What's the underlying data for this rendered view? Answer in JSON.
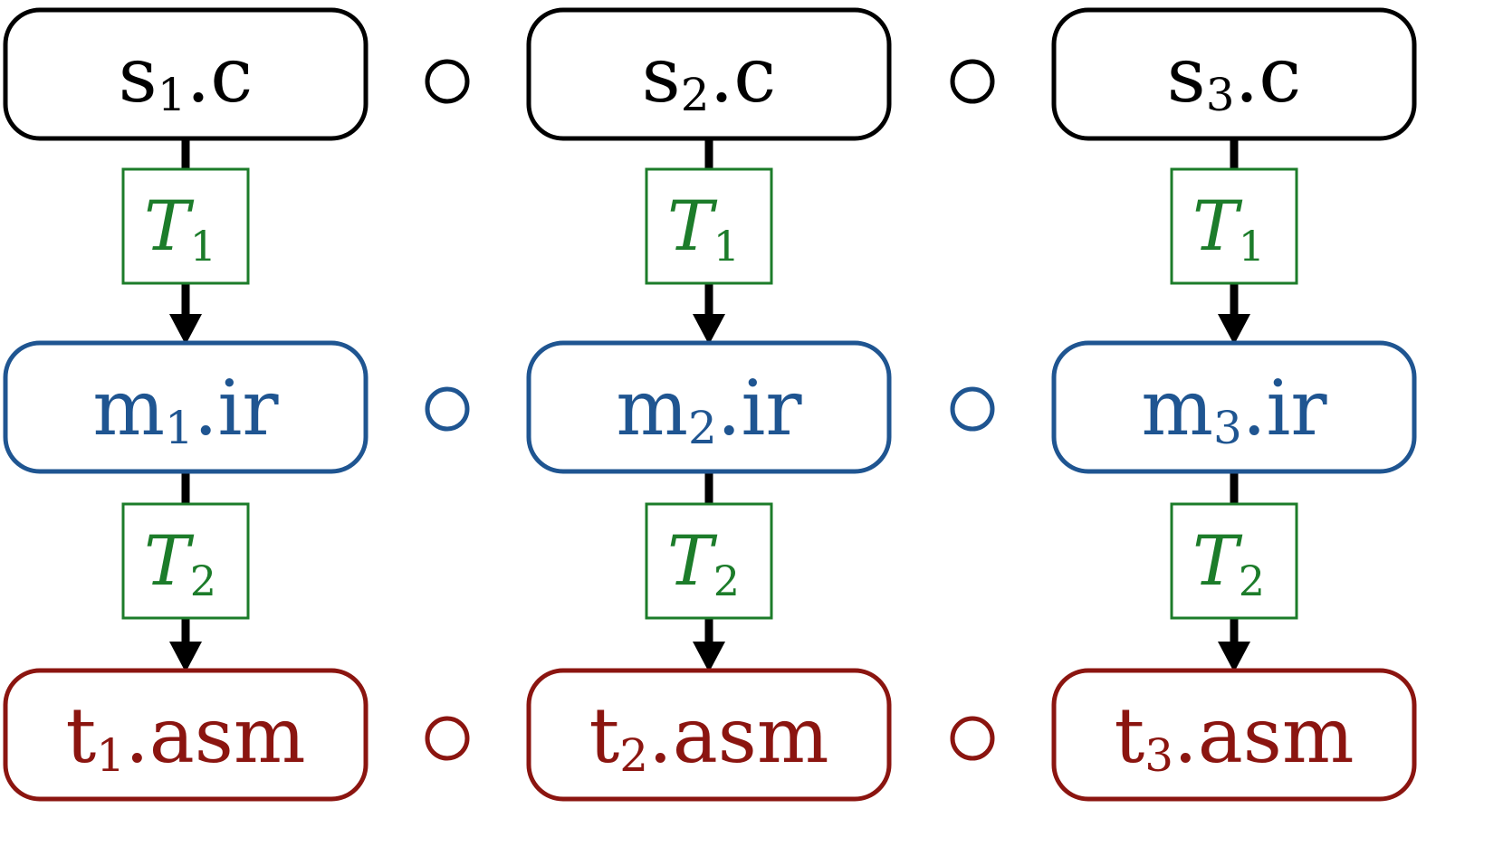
{
  "colors": {
    "source": "#000000",
    "ir": "#1f5591",
    "asm": "#8b1510",
    "transform": "#1c7c2a",
    "arrow": "#000000",
    "background": "#ffffff"
  },
  "columns": [
    {
      "source": {
        "base": "s",
        "sub": "1",
        "ext": ".c"
      },
      "t1": {
        "base": "T",
        "sub": "1"
      },
      "ir": {
        "base": "m",
        "sub": "1",
        "ext": ".ir"
      },
      "t2": {
        "base": "T",
        "sub": "2"
      },
      "asm": {
        "base": "t",
        "sub": "1",
        "ext": ".asm"
      }
    },
    {
      "source": {
        "base": "s",
        "sub": "2",
        "ext": ".c"
      },
      "t1": {
        "base": "T",
        "sub": "1"
      },
      "ir": {
        "base": "m",
        "sub": "2",
        "ext": ".ir"
      },
      "t2": {
        "base": "T",
        "sub": "2"
      },
      "asm": {
        "base": "t",
        "sub": "2",
        "ext": ".asm"
      }
    },
    {
      "source": {
        "base": "s",
        "sub": "3",
        "ext": ".c"
      },
      "t1": {
        "base": "T",
        "sub": "1"
      },
      "ir": {
        "base": "m",
        "sub": "3",
        "ext": ".ir"
      },
      "t2": {
        "base": "T",
        "sub": "2"
      },
      "asm": {
        "base": "t",
        "sub": "3",
        "ext": ".asm"
      }
    }
  ],
  "connector_symbol": "∘"
}
